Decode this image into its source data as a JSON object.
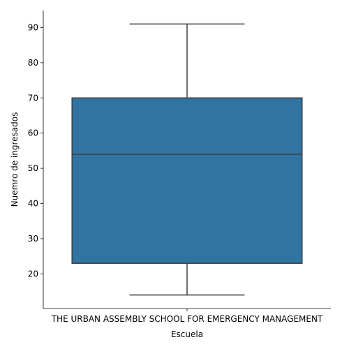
{
  "chart_data": {
    "type": "box",
    "title": "",
    "xlabel": "Escuela",
    "ylabel": "Nuemro de ingresados",
    "categories": [
      "THE URBAN ASSEMBLY SCHOOL FOR EMERGENCY MANAGEMENT"
    ],
    "boxes": [
      {
        "category": "THE URBAN ASSEMBLY SCHOOL FOR EMERGENCY MANAGEMENT",
        "whisker_low": 14,
        "q1": 23,
        "median": 54,
        "q3": 70,
        "whisker_high": 91
      }
    ],
    "yticks": [
      20,
      30,
      40,
      50,
      60,
      70,
      80,
      90
    ],
    "ylim": [
      10.15,
      94.85
    ],
    "grid": false,
    "box_color": "#3274a1",
    "line_color": "#3f3f3f"
  }
}
